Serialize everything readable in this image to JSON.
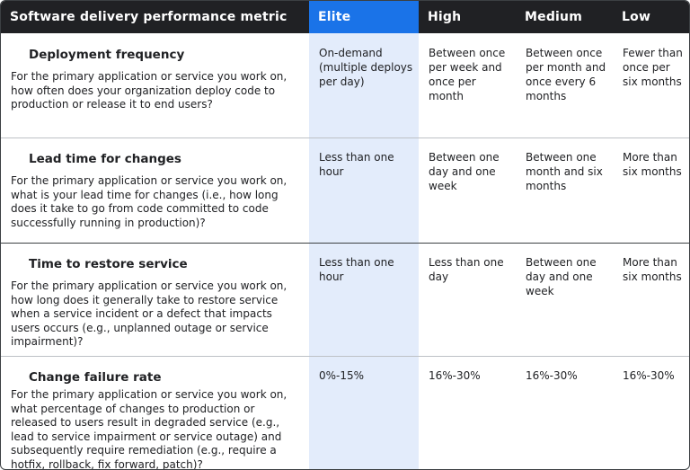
{
  "header": {
    "metric": "Software delivery performance metric",
    "levels": [
      "Elite",
      "High",
      "Medium",
      "Low"
    ]
  },
  "rows": [
    {
      "title": "Deployment frequency",
      "question": "For the primary application or service you work on, how often does your organization deploy code to production or release it to end users?",
      "values": [
        "On-demand (multiple deploys per day)",
        "Between once per week and once per month",
        "Between once per month and once every 6 months",
        "Fewer than once per six months"
      ]
    },
    {
      "title": "Lead time for changes",
      "question": "For the primary application or service you work on, what is your lead time for changes (i.e., how long does it take to go from code committed to code successfully running in production)?",
      "values": [
        "Less than one hour",
        "Between one day and one week",
        "Between one month and six months",
        "More than six months"
      ]
    },
    {
      "title": "Time to restore service",
      "question": "For the primary application or service you work on, how long does it generally take to restore service when a service incident or a defect that impacts users occurs (e.g., unplanned outage or service impairment)?",
      "values": [
        "Less than one hour",
        "Less than one day",
        "Between one day and one week",
        "More than six months"
      ]
    },
    {
      "title": "Change failure rate",
      "question": "For the primary application or service you work on, what percentage of changes to production or released to users result in degraded service (e.g., lead to service impairment or service outage) and subsequently require remediation (e.g., require a hotfix, rollback, fix forward, patch)?",
      "values": [
        "0%-15%",
        "16%-30%",
        "16%-30%",
        "16%-30%"
      ]
    }
  ]
}
